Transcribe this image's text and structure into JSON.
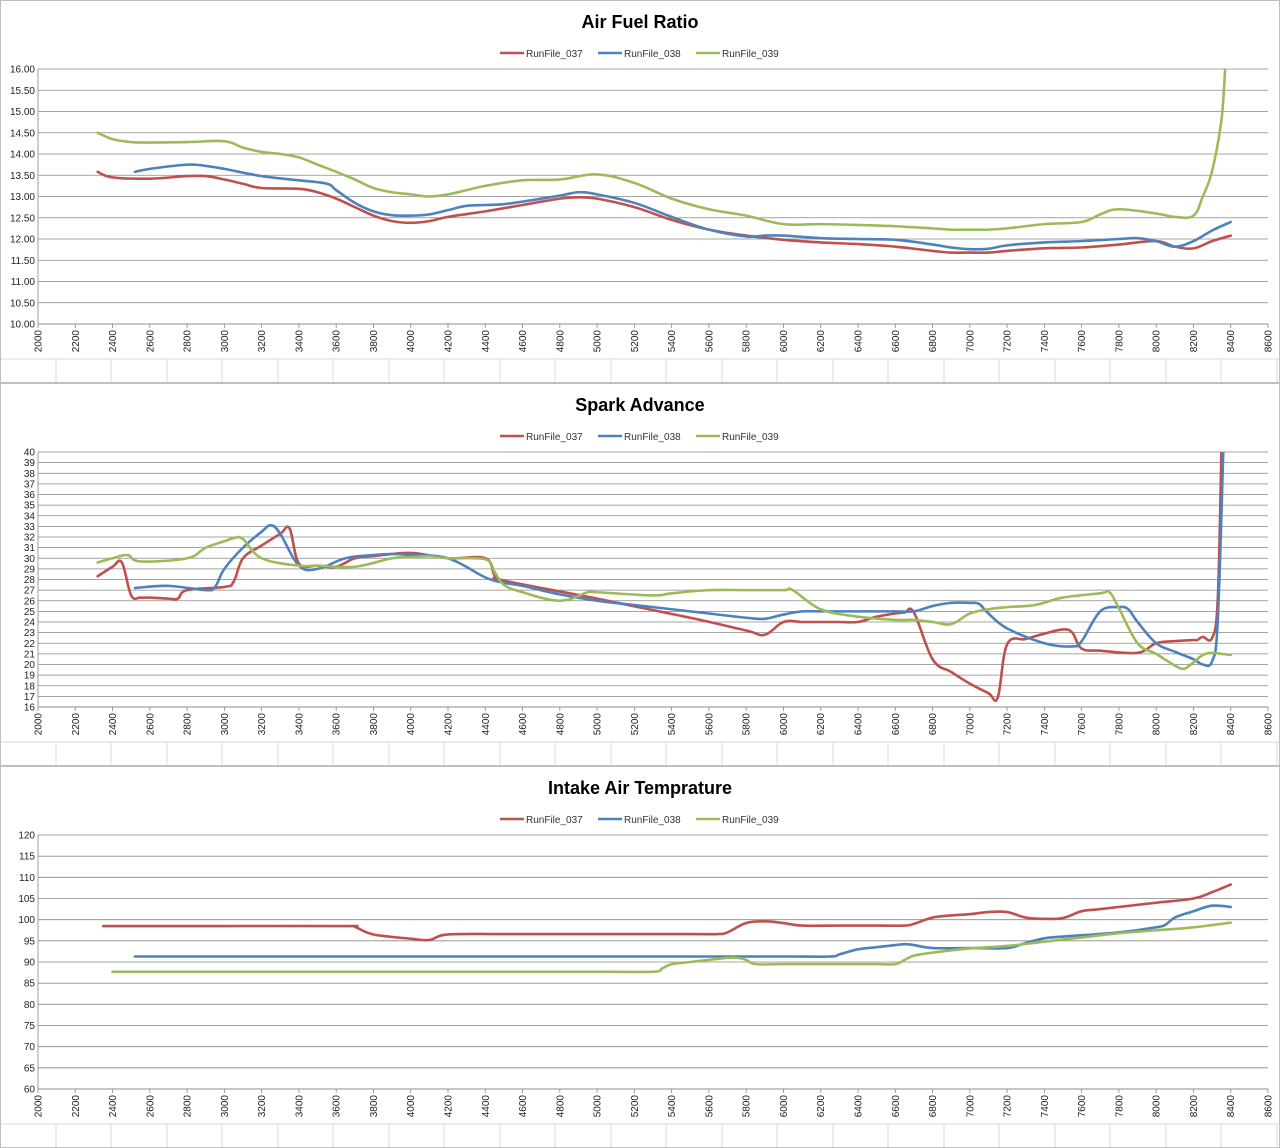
{
  "colors": {
    "RunFile_037": "#c0504d",
    "RunFile_038": "#4f81bd",
    "RunFile_039": "#9bbb59",
    "grid": "#878787",
    "sheet_grid": "#d9d9d9"
  },
  "chart_data": [
    {
      "type": "line",
      "title": "Air Fuel Ratio",
      "xlabel": "",
      "ylabel": "",
      "xlim": [
        2000,
        8600
      ],
      "ylim": [
        10,
        16
      ],
      "x_ticks": [
        "2000",
        "2200",
        "2400",
        "2600",
        "2800",
        "3000",
        "3200",
        "3400",
        "3600",
        "3800",
        "4000",
        "4200",
        "4400",
        "4600",
        "4800",
        "5000",
        "5200",
        "5400",
        "5600",
        "5800",
        "6000",
        "6200",
        "6400",
        "6600",
        "6800",
        "7000",
        "7200",
        "7400",
        "7600",
        "7800",
        "8000",
        "8200",
        "8400",
        "8600"
      ],
      "y_ticks": [
        "10.00",
        "10.50",
        "11.00",
        "11.50",
        "12.00",
        "12.50",
        "13.00",
        "13.50",
        "14.00",
        "14.50",
        "15.00",
        "15.50",
        "16.00"
      ],
      "legend": [
        "RunFile_037",
        "RunFile_038",
        "RunFile_039"
      ],
      "grid": true,
      "legend_position": "top",
      "series": [
        {
          "name": "RunFile_037",
          "x": [
            2320,
            2400,
            2600,
            2800,
            2900,
            3000,
            3100,
            3200,
            3400,
            3500,
            3600,
            3700,
            3800,
            3900,
            4000,
            4100,
            4200,
            4400,
            4600,
            4800,
            4900,
            5000,
            5200,
            5400,
            5600,
            5800,
            6000,
            6200,
            6400,
            6600,
            6800,
            6900,
            7000,
            7100,
            7200,
            7400,
            7600,
            7800,
            8000,
            8100,
            8200,
            8300,
            8400
          ],
          "y": [
            13.58,
            13.45,
            13.42,
            13.48,
            13.48,
            13.4,
            13.3,
            13.2,
            13.18,
            13.1,
            12.95,
            12.75,
            12.55,
            12.42,
            12.38,
            12.42,
            12.52,
            12.65,
            12.8,
            12.95,
            12.98,
            12.95,
            12.75,
            12.45,
            12.22,
            12.08,
            11.98,
            11.92,
            11.88,
            11.82,
            11.72,
            11.68,
            11.68,
            11.68,
            11.72,
            11.78,
            11.8,
            11.87,
            11.95,
            11.82,
            11.78,
            11.95,
            12.08
          ]
        },
        {
          "name": "RunFile_038",
          "x": [
            2520,
            2600,
            2800,
            2900,
            3000,
            3200,
            3400,
            3550,
            3600,
            3700,
            3800,
            3900,
            4000,
            4100,
            4200,
            4300,
            4400,
            4500,
            4600,
            4800,
            4900,
            5000,
            5200,
            5400,
            5600,
            5800,
            5900,
            6000,
            6200,
            6400,
            6600,
            6800,
            6900,
            7000,
            7100,
            7200,
            7400,
            7600,
            7800,
            7900,
            8000,
            8100,
            8200,
            8300,
            8400
          ],
          "y": [
            13.58,
            13.65,
            13.75,
            13.72,
            13.65,
            13.48,
            13.38,
            13.3,
            13.15,
            12.85,
            12.65,
            12.56,
            12.55,
            12.58,
            12.68,
            12.78,
            12.8,
            12.82,
            12.88,
            13.02,
            13.1,
            13.05,
            12.85,
            12.52,
            12.22,
            12.06,
            12.08,
            12.08,
            12.02,
            12.0,
            11.98,
            11.87,
            11.8,
            11.76,
            11.77,
            11.85,
            11.92,
            11.95,
            12.0,
            12.02,
            11.95,
            11.82,
            11.95,
            12.2,
            12.4
          ]
        },
        {
          "name": "RunFile_039",
          "x": [
            2320,
            2400,
            2500,
            2600,
            2800,
            3000,
            3100,
            3200,
            3300,
            3400,
            3500,
            3600,
            3700,
            3800,
            3900,
            4000,
            4100,
            4200,
            4300,
            4400,
            4600,
            4800,
            5000,
            5200,
            5400,
            5600,
            5800,
            6000,
            6200,
            6400,
            6600,
            6800,
            6900,
            7000,
            7100,
            7200,
            7400,
            7600,
            7700,
            7800,
            8000,
            8100,
            8200,
            8250,
            8300,
            8350,
            8370
          ],
          "y": [
            14.5,
            14.35,
            14.28,
            14.27,
            14.28,
            14.3,
            14.15,
            14.05,
            14.0,
            13.92,
            13.75,
            13.58,
            13.4,
            13.2,
            13.1,
            13.05,
            13.0,
            13.05,
            13.15,
            13.25,
            13.38,
            13.4,
            13.52,
            13.32,
            12.95,
            12.7,
            12.55,
            12.35,
            12.35,
            12.33,
            12.3,
            12.25,
            12.22,
            12.22,
            12.22,
            12.25,
            12.35,
            12.4,
            12.58,
            12.7,
            12.6,
            12.52,
            12.55,
            13.0,
            13.6,
            14.8,
            16.0
          ]
        }
      ]
    },
    {
      "type": "line",
      "title": "Spark Advance",
      "xlabel": "",
      "ylabel": "",
      "xlim": [
        2000,
        8600
      ],
      "ylim": [
        16,
        40
      ],
      "x_ticks": [
        "2000",
        "2200",
        "2400",
        "2600",
        "2800",
        "3000",
        "3200",
        "3400",
        "3600",
        "3800",
        "4000",
        "4200",
        "4400",
        "4600",
        "4800",
        "5000",
        "5200",
        "5400",
        "5600",
        "5800",
        "6000",
        "6200",
        "6400",
        "6600",
        "6800",
        "7000",
        "7200",
        "7400",
        "7600",
        "7800",
        "8000",
        "8200",
        "8400",
        "8600"
      ],
      "y_ticks": [
        "16",
        "17",
        "18",
        "19",
        "20",
        "21",
        "22",
        "23",
        "24",
        "25",
        "26",
        "27",
        "28",
        "29",
        "30",
        "31",
        "32",
        "33",
        "34",
        "35",
        "36",
        "37",
        "38",
        "39",
        "40"
      ],
      "legend": [
        "RunFile_037",
        "RunFile_038",
        "RunFile_039"
      ],
      "grid": true,
      "legend_position": "top",
      "series": [
        {
          "name": "RunFile_037",
          "x": [
            2320,
            2400,
            2450,
            2500,
            2550,
            2600,
            2700,
            2750,
            2800,
            3000,
            3050,
            3100,
            3200,
            3300,
            3350,
            3400,
            3500,
            3600,
            3700,
            3800,
            4000,
            4200,
            4400,
            4450,
            4500,
            5000,
            5500,
            5800,
            5900,
            6000,
            6100,
            6200,
            6300,
            6400,
            6500,
            6600,
            6650,
            6700,
            6800,
            6900,
            7000,
            7100,
            7150,
            7200,
            7300,
            7400,
            7500,
            7550,
            7600,
            7700,
            7900,
            8000,
            8100,
            8200,
            8220,
            8250,
            8300,
            8330,
            8350
          ],
          "y": [
            28.3,
            29.2,
            29.6,
            26.5,
            26.3,
            26.3,
            26.2,
            26.2,
            27.0,
            27.3,
            27.8,
            30.0,
            31.2,
            32.3,
            32.8,
            29.5,
            29.3,
            29.2,
            30.0,
            30.2,
            30.5,
            30.0,
            30.0,
            28.4,
            27.9,
            26.2,
            24.4,
            23.2,
            22.8,
            24.0,
            24.0,
            24.0,
            24.0,
            24.0,
            24.5,
            24.8,
            24.9,
            24.9,
            20.5,
            19.3,
            18.2,
            17.3,
            16.9,
            21.9,
            22.4,
            22.9,
            23.3,
            23.0,
            21.5,
            21.3,
            21.1,
            22.0,
            22.2,
            22.3,
            22.3,
            22.6,
            22.5,
            26.0,
            40.0
          ]
        },
        {
          "name": "RunFile_038",
          "x": [
            2520,
            2700,
            2900,
            2950,
            3000,
            3100,
            3200,
            3250,
            3300,
            3400,
            3500,
            3650,
            3800,
            3900,
            4000,
            4200,
            4400,
            4500,
            4600,
            4800,
            5000,
            5200,
            5400,
            5600,
            5800,
            5900,
            6000,
            6100,
            6200,
            6300,
            6400,
            6500,
            6600,
            6700,
            6800,
            6900,
            7000,
            7050,
            7100,
            7200,
            7400,
            7550,
            7600,
            7700,
            7800,
            7850,
            7900,
            8000,
            8100,
            8200,
            8250,
            8300,
            8330,
            8360
          ],
          "y": [
            27.2,
            27.4,
            27.0,
            27.3,
            29.0,
            31.0,
            32.5,
            33.1,
            32.3,
            29.3,
            29.0,
            30.0,
            30.3,
            30.4,
            30.3,
            30.0,
            28.2,
            27.7,
            27.4,
            26.6,
            26.0,
            25.6,
            25.2,
            24.8,
            24.4,
            24.3,
            24.7,
            25.0,
            25.0,
            25.0,
            25.0,
            25.0,
            25.0,
            25.0,
            25.5,
            25.8,
            25.8,
            25.7,
            24.8,
            23.4,
            22.0,
            21.7,
            22.2,
            25.0,
            25.4,
            25.2,
            24.0,
            22.0,
            21.2,
            20.5,
            20.0,
            20.3,
            24.0,
            40.0
          ]
        },
        {
          "name": "RunFile_039",
          "x": [
            2320,
            2400,
            2480,
            2550,
            2800,
            2900,
            3000,
            3050,
            3100,
            3200,
            3400,
            3500,
            3700,
            3900,
            4000,
            4100,
            4200,
            4400,
            4450,
            4500,
            4600,
            4800,
            4950,
            5000,
            5300,
            5400,
            5600,
            5800,
            6000,
            6050,
            6200,
            6400,
            6600,
            6700,
            6800,
            6900,
            7000,
            7100,
            7200,
            7350,
            7500,
            7700,
            7750,
            7800,
            7900,
            8000,
            8100,
            8150,
            8200,
            8250,
            8300,
            8350,
            8400
          ],
          "y": [
            29.6,
            30.0,
            30.3,
            29.7,
            30.0,
            31.0,
            31.6,
            31.9,
            31.8,
            30.0,
            29.3,
            29.3,
            29.2,
            30.0,
            30.1,
            30.2,
            30.0,
            29.9,
            28.7,
            27.5,
            26.8,
            26.0,
            26.8,
            26.8,
            26.5,
            26.7,
            27.0,
            27.0,
            27.0,
            27.0,
            25.2,
            24.5,
            24.2,
            24.2,
            24.0,
            23.8,
            24.8,
            25.2,
            25.4,
            25.6,
            26.3,
            26.7,
            26.8,
            25.3,
            22.0,
            21.0,
            19.9,
            19.6,
            20.2,
            20.9,
            21.1,
            21.0,
            20.9
          ]
        }
      ]
    },
    {
      "type": "line",
      "title": "Intake Air Temprature",
      "xlabel": "",
      "ylabel": "",
      "xlim": [
        2000,
        8600
      ],
      "ylim": [
        60,
        120
      ],
      "x_ticks": [
        "2000",
        "2200",
        "2400",
        "2600",
        "2800",
        "3000",
        "3200",
        "3400",
        "3600",
        "3800",
        "4000",
        "4200",
        "4400",
        "4600",
        "4800",
        "5000",
        "5200",
        "5400",
        "5600",
        "5800",
        "6000",
        "6200",
        "6400",
        "6600",
        "6800",
        "7000",
        "7200",
        "7400",
        "7600",
        "7800",
        "8000",
        "8200",
        "8400",
        "8600"
      ],
      "y_ticks": [
        "60",
        "65",
        "70",
        "75",
        "80",
        "85",
        "90",
        "95",
        "100",
        "105",
        "110",
        "115",
        "120"
      ],
      "legend": [
        "RunFile_037",
        "RunFile_038",
        "RunFile_039"
      ],
      "grid": true,
      "legend_position": "top",
      "series": [
        {
          "name": "RunFile_037",
          "x": [
            2350,
            3000,
            3650,
            3700,
            3800,
            4000,
            4100,
            4200,
            4500,
            5000,
            5500,
            5650,
            5700,
            5800,
            5900,
            6000,
            6100,
            6300,
            6500,
            6650,
            6700,
            6800,
            6900,
            7000,
            7100,
            7200,
            7300,
            7400,
            7500,
            7600,
            7700,
            8000,
            8200,
            8300,
            8400
          ],
          "y": [
            98.5,
            98.5,
            98.5,
            98.3,
            96.5,
            95.5,
            95.2,
            96.5,
            96.6,
            96.6,
            96.6,
            96.6,
            97.0,
            99.2,
            99.6,
            99.2,
            98.6,
            98.6,
            98.6,
            98.6,
            99.0,
            100.5,
            101.0,
            101.3,
            101.8,
            101.8,
            100.5,
            100.2,
            100.4,
            102.0,
            102.5,
            104.0,
            105.0,
            106.5,
            108.3
          ]
        },
        {
          "name": "RunFile_038",
          "x": [
            2520,
            3500,
            4500,
            5500,
            6000,
            6250,
            6300,
            6400,
            6500,
            6600,
            6650,
            6700,
            6800,
            7000,
            7200,
            7300,
            7400,
            7500,
            7800,
            8000,
            8050,
            8100,
            8200,
            8300,
            8400
          ],
          "y": [
            91.3,
            91.3,
            91.3,
            91.3,
            91.3,
            91.3,
            91.8,
            93.0,
            93.5,
            94.0,
            94.2,
            94.0,
            93.3,
            93.3,
            93.3,
            94.5,
            95.6,
            96.0,
            97.0,
            98.2,
            98.8,
            100.5,
            102.0,
            103.3,
            103.0
          ]
        },
        {
          "name": "RunFile_039",
          "x": [
            2400,
            3000,
            4000,
            5000,
            5300,
            5350,
            5400,
            5500,
            5600,
            5700,
            5750,
            5800,
            5850,
            6000,
            6300,
            6500,
            6600,
            6650,
            6700,
            6800,
            7000,
            7200,
            7400,
            7600,
            7800,
            8000,
            8200,
            8400
          ],
          "y": [
            87.7,
            87.7,
            87.7,
            87.7,
            87.7,
            88.5,
            89.5,
            90.0,
            90.5,
            91.0,
            91.0,
            90.5,
            89.5,
            89.5,
            89.5,
            89.5,
            89.5,
            90.5,
            91.5,
            92.2,
            93.2,
            93.8,
            94.8,
            95.8,
            96.8,
            97.5,
            98.2,
            99.3
          ]
        }
      ]
    }
  ]
}
